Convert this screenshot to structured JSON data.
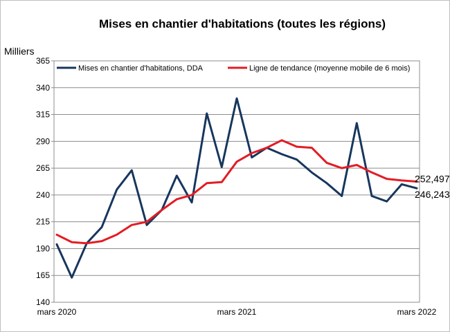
{
  "chart_data": {
    "type": "line",
    "title": "Mises en chantier d'habitations (toutes les régions)",
    "ylabel": "Milliers",
    "xlabel": "",
    "ylim": [
      140,
      365
    ],
    "yticks": [
      140,
      165,
      190,
      215,
      240,
      265,
      290,
      315,
      340,
      365
    ],
    "xtick_labels": [
      {
        "index": 0,
        "label": "mars 2020"
      },
      {
        "index": 12,
        "label": "mars 2021"
      },
      {
        "index": 24,
        "label": "mars 2022"
      }
    ],
    "grid": true,
    "legend_position": "top",
    "x": [
      "2020-03",
      "2020-04",
      "2020-05",
      "2020-06",
      "2020-07",
      "2020-08",
      "2020-09",
      "2020-10",
      "2020-11",
      "2020-12",
      "2021-01",
      "2021-02",
      "2021-03",
      "2021-04",
      "2021-05",
      "2021-06",
      "2021-07",
      "2021-08",
      "2021-09",
      "2021-10",
      "2021-11",
      "2021-12",
      "2022-01",
      "2022-02",
      "2022-03"
    ],
    "series": [
      {
        "name": "Mises en chantier d'habitations, DDA",
        "color": "#17365d",
        "values": [
          194,
          163,
          195,
          210,
          245,
          263,
          212,
          226,
          258,
          233,
          316,
          266,
          330,
          275,
          284,
          278,
          273,
          261,
          251,
          239,
          307,
          239,
          234,
          250,
          246.243
        ]
      },
      {
        "name": "Ligne de tendance (moyenne mobile de 6 mois)",
        "color": "#e31c23",
        "values": [
          203,
          196,
          195,
          197,
          203,
          212,
          215,
          226,
          236,
          240,
          251,
          252,
          271,
          279,
          284,
          291,
          285,
          284,
          270,
          265,
          268,
          261,
          255,
          253.5,
          252.497
        ]
      }
    ],
    "end_labels": [
      "252,497",
      "246,243"
    ]
  }
}
